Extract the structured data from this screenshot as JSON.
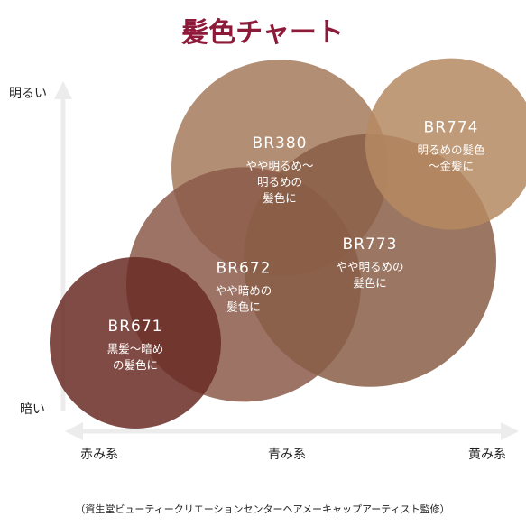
{
  "chart_data": {
    "type": "bubble",
    "title": "髪色チャート",
    "x_axis": {
      "low_label": "赤み系",
      "mid_label": "青み系",
      "high_label": "黄み系",
      "range": [
        0,
        10
      ]
    },
    "y_axis": {
      "low_label": "暗い",
      "high_label": "明るい",
      "range": [
        0,
        10
      ]
    },
    "grid": false,
    "series": [
      {
        "code": "BR380",
        "desc": [
          "やや明るめ〜",
          "明るめの",
          "髪色に"
        ],
        "x": 4.8,
        "y": 7.6,
        "r": 2.4,
        "color": "#a57a5d"
      },
      {
        "code": "BR672",
        "desc": [
          "やや暗めの",
          "髪色に"
        ],
        "x": 4.0,
        "y": 4.2,
        "r": 2.6,
        "color": "#8b5a49"
      },
      {
        "code": "BR773",
        "desc": [
          "やや明るめの",
          "髪色に"
        ],
        "x": 6.8,
        "y": 4.9,
        "r": 2.8,
        "color": "#8a5e47"
      },
      {
        "code": "BR774",
        "desc": [
          "明るめの髪色",
          "〜金髪に"
        ],
        "x": 8.6,
        "y": 8.3,
        "r": 1.9,
        "color": "#b58a62"
      },
      {
        "code": "BR671",
        "desc": [
          "黒髪〜暗め",
          "の髪色に"
        ],
        "x": 1.6,
        "y": 2.5,
        "r": 1.9,
        "color": "#6a2c24"
      }
    ],
    "note": "（資生堂ビューティークリエーションセンターヘアメーキャップアーティスト監修）"
  }
}
